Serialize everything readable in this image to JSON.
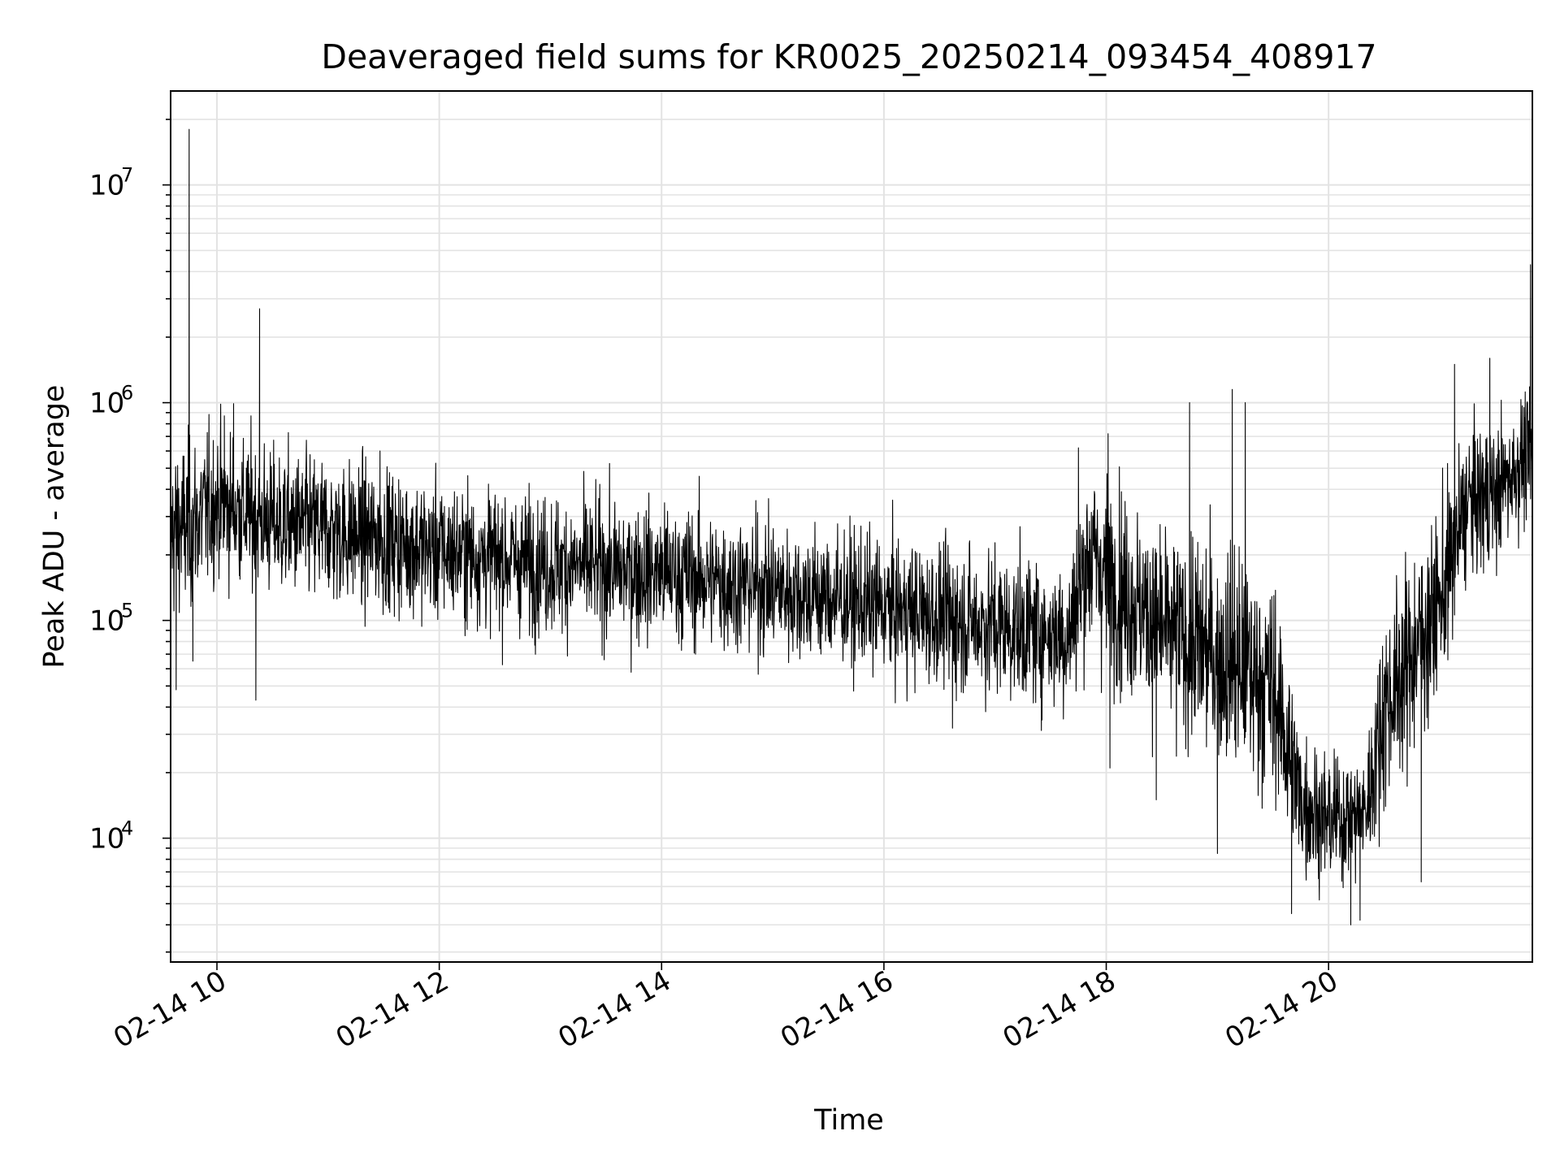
{
  "chart_data": {
    "type": "line",
    "title": "Deaveraged field sums for KR0025_20250214_093454_408917",
    "xlabel": "Time",
    "ylabel": "Peak ADU - average",
    "yscale": "log",
    "grid": true,
    "x_tick_labels": [
      "02-14 10",
      "02-14 12",
      "02-14 14",
      "02-14 16",
      "02-14 18",
      "02-14 20"
    ],
    "xlim": [
      "2025-02-14 09:35",
      "2025-02-14 21:50"
    ],
    "ylim": [
      2700,
      27000000
    ],
    "y_ticks": [
      {
        "value": 10000,
        "base": "10",
        "exp": "4"
      },
      {
        "value": 100000,
        "base": "10",
        "exp": "5"
      },
      {
        "value": 1000000,
        "base": "10",
        "exp": "6"
      },
      {
        "value": 10000000,
        "base": "10",
        "exp": "7"
      }
    ],
    "series": [
      {
        "color": "#000000",
        "line_width_note": "thin",
        "envelope": {
          "x": [
            "2025-02-14 09:35",
            "2025-02-14 09:45",
            "2025-02-14 10:00",
            "2025-02-14 10:30",
            "2025-02-14 11:00",
            "2025-02-14 12:00",
            "2025-02-14 13:00",
            "2025-02-14 14:00",
            "2025-02-14 15:00",
            "2025-02-14 16:00",
            "2025-02-14 17:00",
            "2025-02-14 17:40",
            "2025-02-14 17:50",
            "2025-02-14 18:30",
            "2025-02-14 19:00",
            "2025-02-14 19:30",
            "2025-02-14 19:45",
            "2025-02-14 20:00",
            "2025-02-14 20:20",
            "2025-02-14 20:30",
            "2025-02-14 21:00",
            "2025-02-14 21:15",
            "2025-02-14 21:30",
            "2025-02-14 21:45"
          ],
          "median": [
            260000,
            270000,
            350000,
            280000,
            260000,
            210000,
            180000,
            165000,
            140000,
            115000,
            95000,
            85000,
            200000,
            90000,
            70000,
            50000,
            15000,
            12000,
            13000,
            40000,
            120000,
            350000,
            380000,
            550000
          ],
          "spread": [
            0.35,
            0.35,
            0.3,
            0.3,
            0.3,
            0.28,
            0.28,
            0.28,
            0.28,
            0.28,
            0.3,
            0.3,
            0.4,
            0.4,
            0.45,
            0.45,
            0.3,
            0.25,
            0.25,
            0.4,
            0.4,
            0.3,
            0.3,
            0.25
          ]
        },
        "spikes": [
          {
            "x": "2025-02-14 09:38",
            "y": 48000
          },
          {
            "x": "2025-02-14 09:45",
            "y": 18000000
          },
          {
            "x": "2025-02-14 09:47",
            "y": 65000
          },
          {
            "x": "2025-02-14 10:04",
            "y": 870000
          },
          {
            "x": "2025-02-14 10:09",
            "y": 990000
          },
          {
            "x": "2025-02-14 10:21",
            "y": 43000
          },
          {
            "x": "2025-02-14 10:23",
            "y": 2700000
          },
          {
            "x": "2025-02-14 11:28",
            "y": 600000
          },
          {
            "x": "2025-02-14 16:37",
            "y": 32000
          },
          {
            "x": "2025-02-14 17:45",
            "y": 620000
          },
          {
            "x": "2025-02-14 18:01",
            "y": 720000
          },
          {
            "x": "2025-02-14 18:02",
            "y": 21000
          },
          {
            "x": "2025-02-14 18:27",
            "y": 15000
          },
          {
            "x": "2025-02-14 18:45",
            "y": 1000000
          },
          {
            "x": "2025-02-14 19:00",
            "y": 8500
          },
          {
            "x": "2025-02-14 19:08",
            "y": 1150000
          },
          {
            "x": "2025-02-14 19:15",
            "y": 1000000
          },
          {
            "x": "2025-02-14 19:40",
            "y": 4500
          },
          {
            "x": "2025-02-14 19:55",
            "y": 5200
          },
          {
            "x": "2025-02-14 20:12",
            "y": 4000
          },
          {
            "x": "2025-02-14 20:17",
            "y": 4200
          },
          {
            "x": "2025-02-14 20:50",
            "y": 6300
          },
          {
            "x": "2025-02-14 21:08",
            "y": 1500000
          },
          {
            "x": "2025-02-14 21:27",
            "y": 1600000
          },
          {
            "x": "2025-02-14 21:49",
            "y": 4300000
          }
        ]
      }
    ]
  }
}
